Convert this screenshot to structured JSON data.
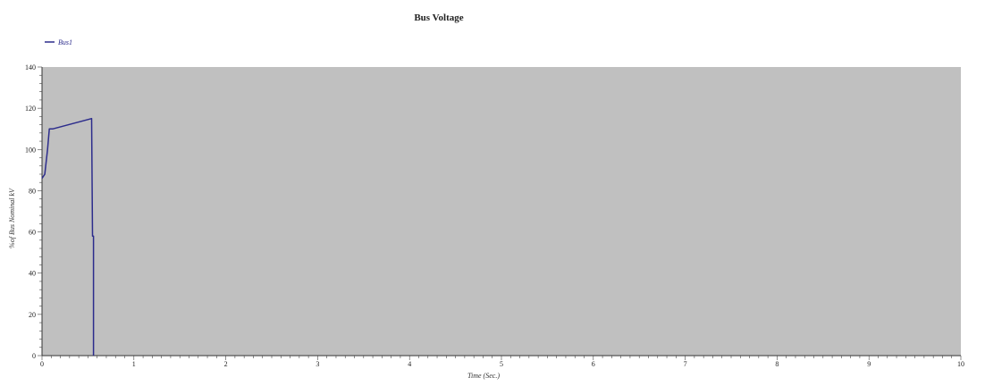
{
  "chart_data": {
    "type": "line",
    "title": "Bus Voltage",
    "xlabel": "Time (Sec.)",
    "ylabel": "%of Bus Nominal kV",
    "xlim": [
      0,
      10
    ],
    "ylim": [
      0,
      140
    ],
    "x_ticks": [
      "0",
      "1",
      "2",
      "3",
      "4",
      "5",
      "6",
      "7",
      "8",
      "9",
      "10"
    ],
    "y_ticks": [
      "0",
      "20",
      "40",
      "60",
      "80",
      "100",
      "120",
      "140"
    ],
    "grid": false,
    "legend_position": "top-left",
    "plot_background": "#c0c0c0",
    "series": [
      {
        "name": "Bus1",
        "color": "#2c2c8c",
        "x": [
          0.0,
          0.03,
          0.06,
          0.08,
          0.12,
          0.54,
          0.55,
          0.56,
          0.56
        ],
        "y": [
          86,
          88,
          100,
          110,
          110,
          115,
          58,
          58,
          0
        ]
      }
    ]
  }
}
